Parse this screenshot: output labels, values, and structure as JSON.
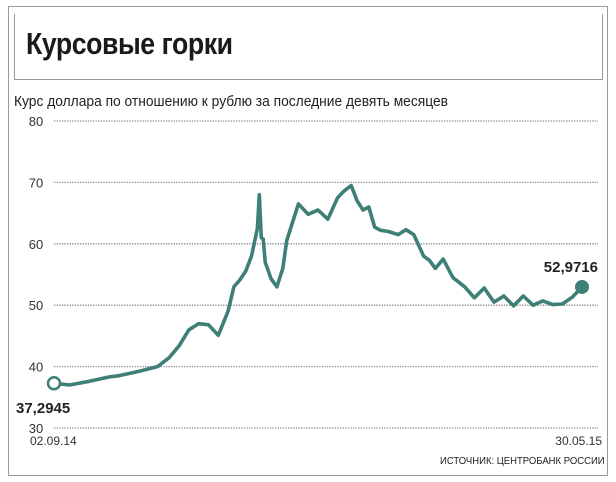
{
  "header": {
    "title": "Курсовые горки",
    "subtitle": "Курс доллара по отношению к рублю за последние девять месяцев",
    "source": "ИСТОЧНИК: ЦЕНТРОБАНК РОССИИ"
  },
  "colors": {
    "line": "#3e7f76",
    "grid": "#8a8a8a",
    "frame": "#9a9a9a"
  },
  "chart_data": {
    "type": "line",
    "title": "Курсовые горки",
    "subtitle": "Курс доллара по отношению к рублю за последние девять месяцев",
    "xlabel": "",
    "ylabel": "",
    "ylim": [
      30,
      80
    ],
    "yticks": [
      30,
      40,
      50,
      60,
      70,
      80
    ],
    "xlim": [
      "2014-09-02",
      "2015-05-30"
    ],
    "x_tick_labels": [
      "02.09.14",
      "30.05.15"
    ],
    "grid": true,
    "series": [
      {
        "x": [
          "2014-09-02",
          "2014-09-10",
          "2014-09-20",
          "2014-09-30",
          "2014-10-05",
          "2014-10-15",
          "2014-10-25",
          "2014-10-31",
          "2014-11-05",
          "2014-11-10",
          "2014-11-15",
          "2014-11-20",
          "2014-11-25",
          "2014-11-30",
          "2014-12-03",
          "2014-12-06",
          "2014-12-09",
          "2014-12-12",
          "2014-12-15",
          "2014-12-16",
          "2014-12-17",
          "2014-12-18",
          "2014-12-19",
          "2014-12-22",
          "2014-12-25",
          "2014-12-28",
          "2014-12-30",
          "2015-01-05",
          "2015-01-10",
          "2015-01-15",
          "2015-01-20",
          "2015-01-25",
          "2015-01-28",
          "2015-02-01",
          "2015-02-04",
          "2015-02-07",
          "2015-02-10",
          "2015-02-13",
          "2015-02-16",
          "2015-02-20",
          "2015-02-25",
          "2015-03-01",
          "2015-03-05",
          "2015-03-10",
          "2015-03-13",
          "2015-03-16",
          "2015-03-20",
          "2015-03-25",
          "2015-03-31",
          "2015-04-05",
          "2015-04-10",
          "2015-04-15",
          "2015-04-20",
          "2015-04-25",
          "2015-04-30",
          "2015-05-05",
          "2015-05-10",
          "2015-05-15",
          "2015-05-20",
          "2015-05-25",
          "2015-05-30"
        ],
        "values": [
          37.29,
          37.0,
          37.6,
          38.3,
          38.5,
          39.2,
          40.0,
          41.5,
          43.4,
          46.0,
          47.0,
          46.8,
          45.1,
          49.0,
          53.0,
          54.1,
          55.5,
          58.0,
          62.5,
          68.0,
          61.0,
          60.8,
          57.0,
          54.3,
          53.0,
          56.0,
          60.5,
          66.5,
          64.8,
          65.5,
          64.0,
          67.5,
          68.5,
          69.5,
          67.0,
          65.5,
          66.0,
          62.7,
          62.2,
          62.0,
          61.5,
          62.3,
          61.5,
          58.0,
          57.3,
          56.0,
          57.5,
          54.5,
          53.0,
          51.2,
          52.8,
          50.5,
          51.5,
          49.9,
          51.5,
          50.0,
          50.7,
          50.1,
          50.2,
          51.3,
          52.97
        ]
      }
    ],
    "annotations": [
      {
        "x": "2014-09-02",
        "y": 37.2945,
        "text": "37,2945"
      },
      {
        "x": "2015-05-30",
        "y": 52.9716,
        "text": "52,9716"
      }
    ]
  }
}
